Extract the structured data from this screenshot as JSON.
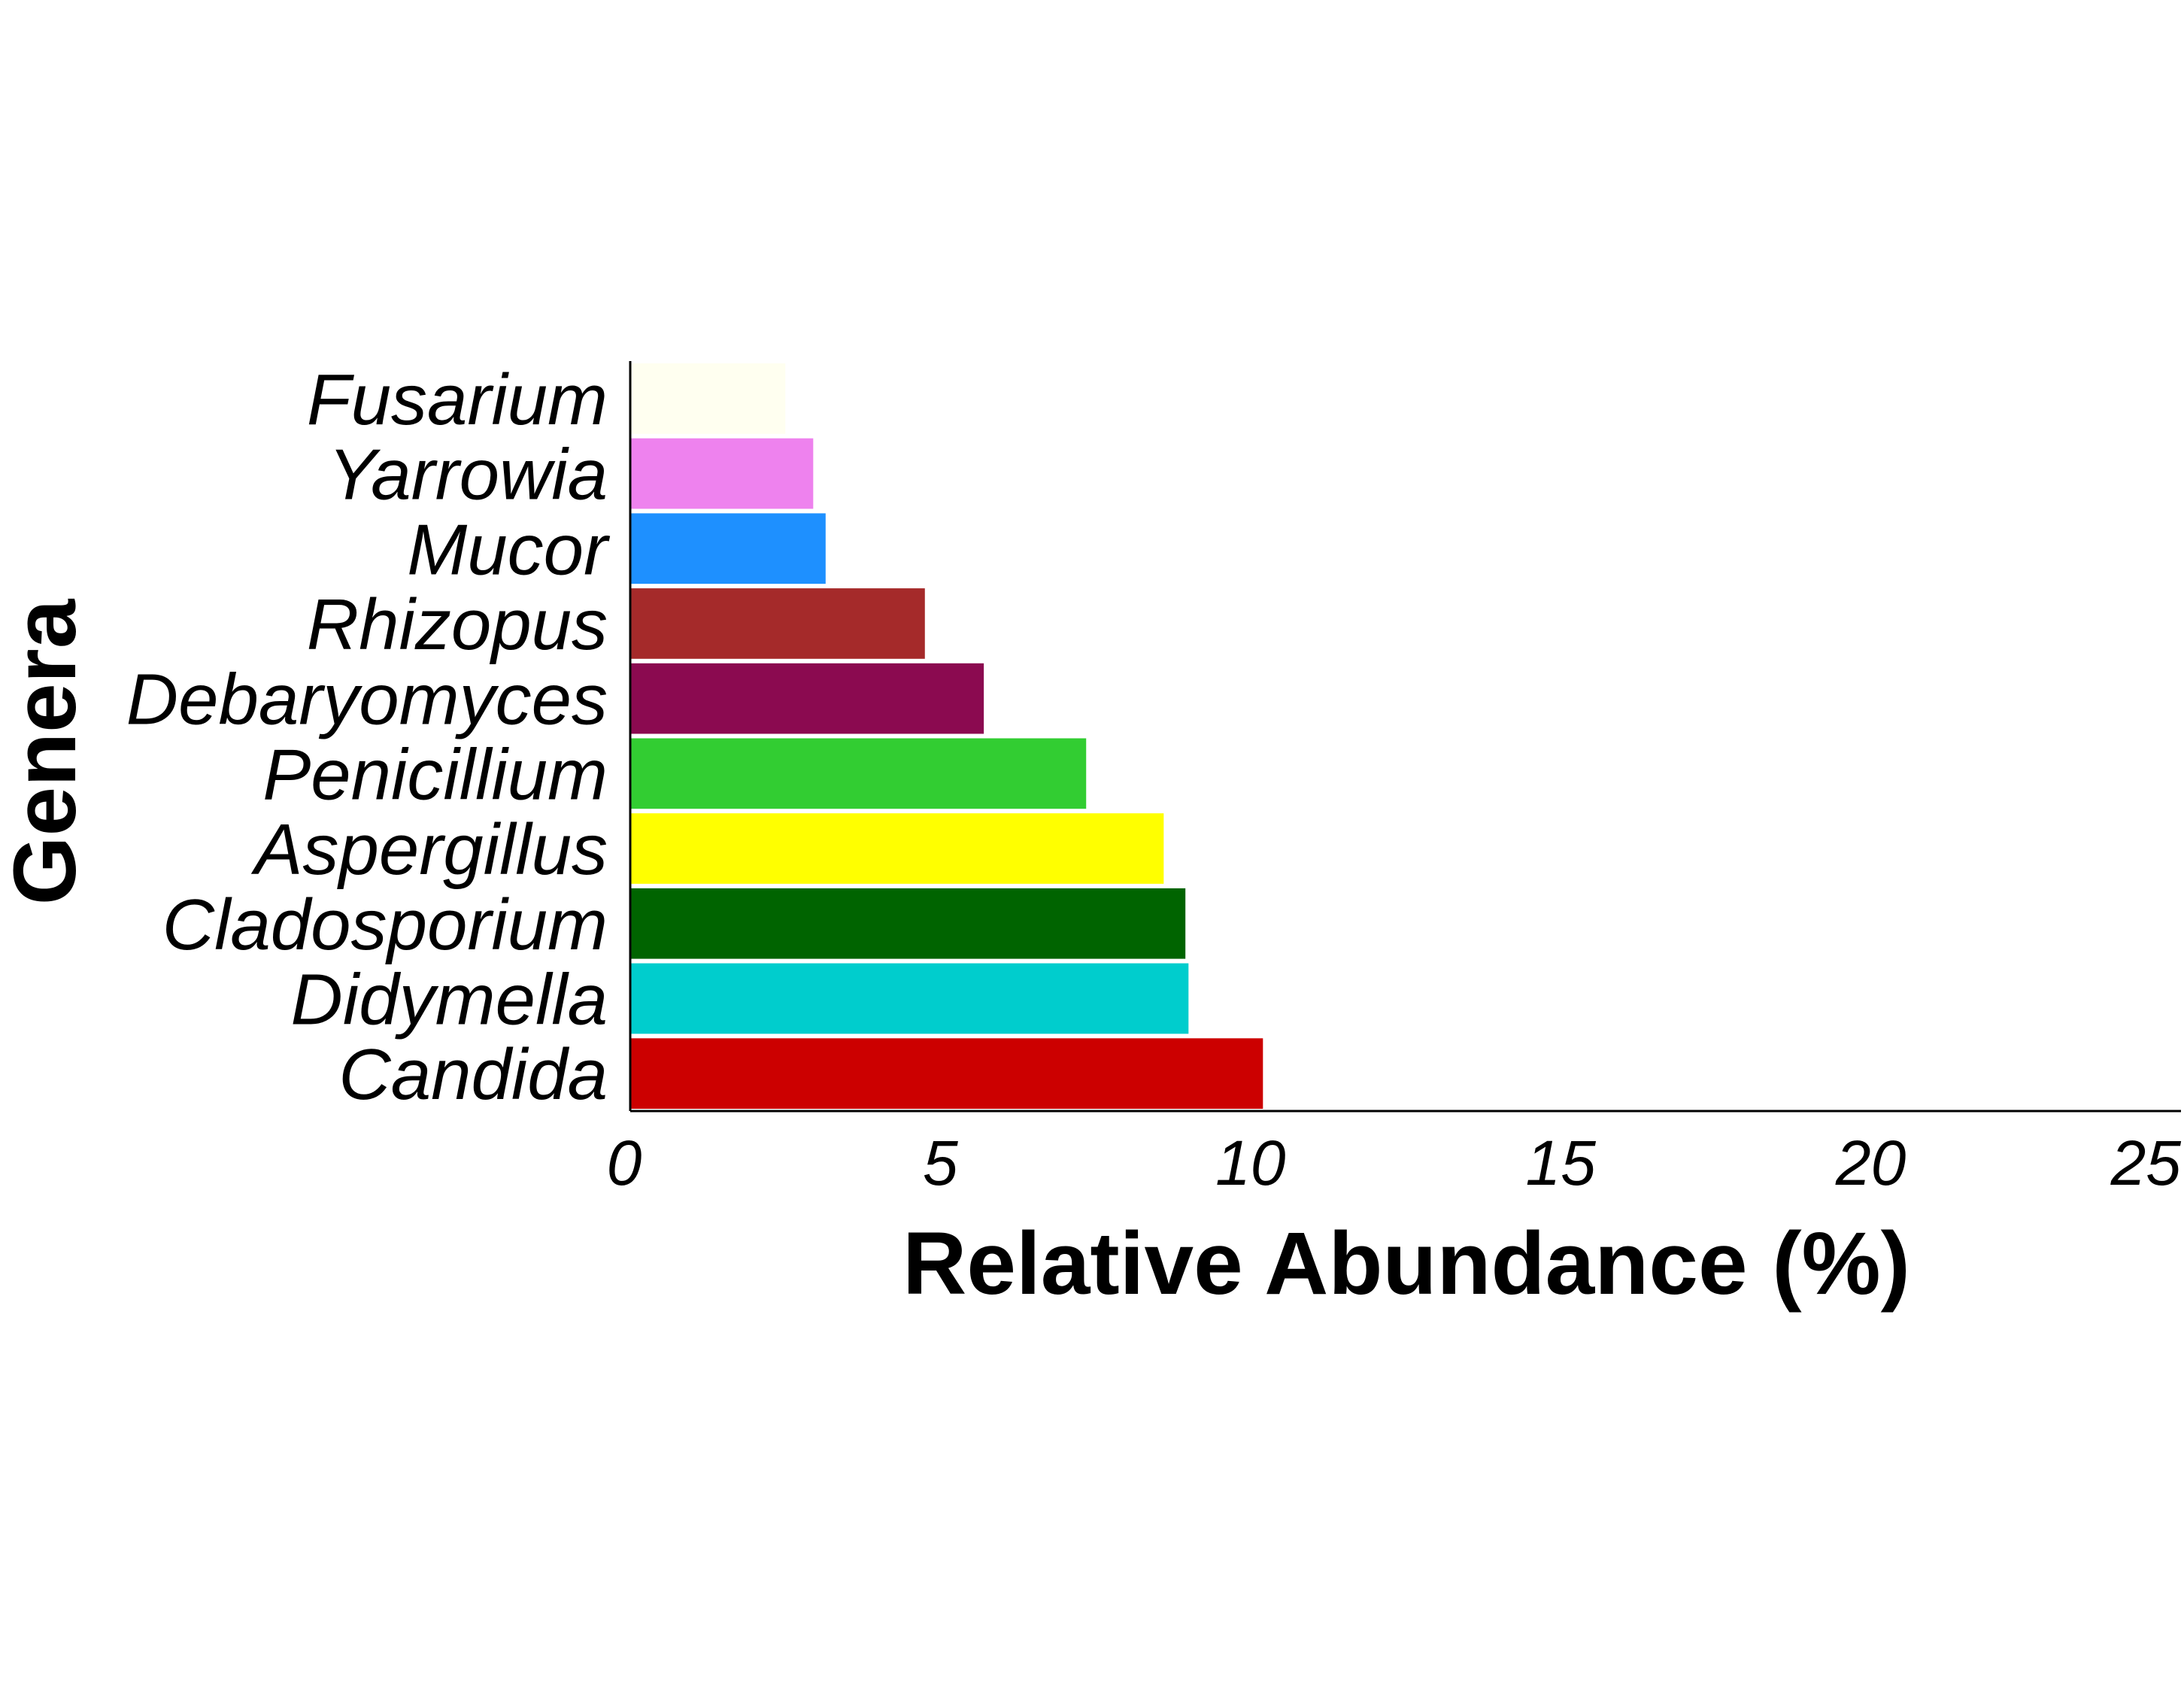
{
  "chart_data": {
    "type": "bar",
    "orientation": "horizontal",
    "xlabel": "Relative Abundance (%)",
    "ylabel": "Genera",
    "xlim": [
      0,
      25
    ],
    "xticks": [
      0,
      5,
      10,
      15,
      20,
      25
    ],
    "grid": false,
    "legend": "none",
    "categories": [
      "Candida",
      "Didymella",
      "Cladosporium",
      "Aspergillus",
      "Penicillium",
      "Debaryomyces",
      "Rhizopus",
      "Mucor",
      "Yarrowia",
      "Fusarium"
    ],
    "values": [
      10.2,
      9.0,
      8.95,
      8.6,
      7.35,
      5.7,
      4.75,
      3.15,
      2.95,
      2.5
    ],
    "colors": [
      "#cc0000",
      "#00cdcd",
      "#006400",
      "#ffff00",
      "#32cd32",
      "#8b0a50",
      "#a52a2a",
      "#1e90ff",
      "#ee82ee",
      "#fffff0"
    ]
  }
}
